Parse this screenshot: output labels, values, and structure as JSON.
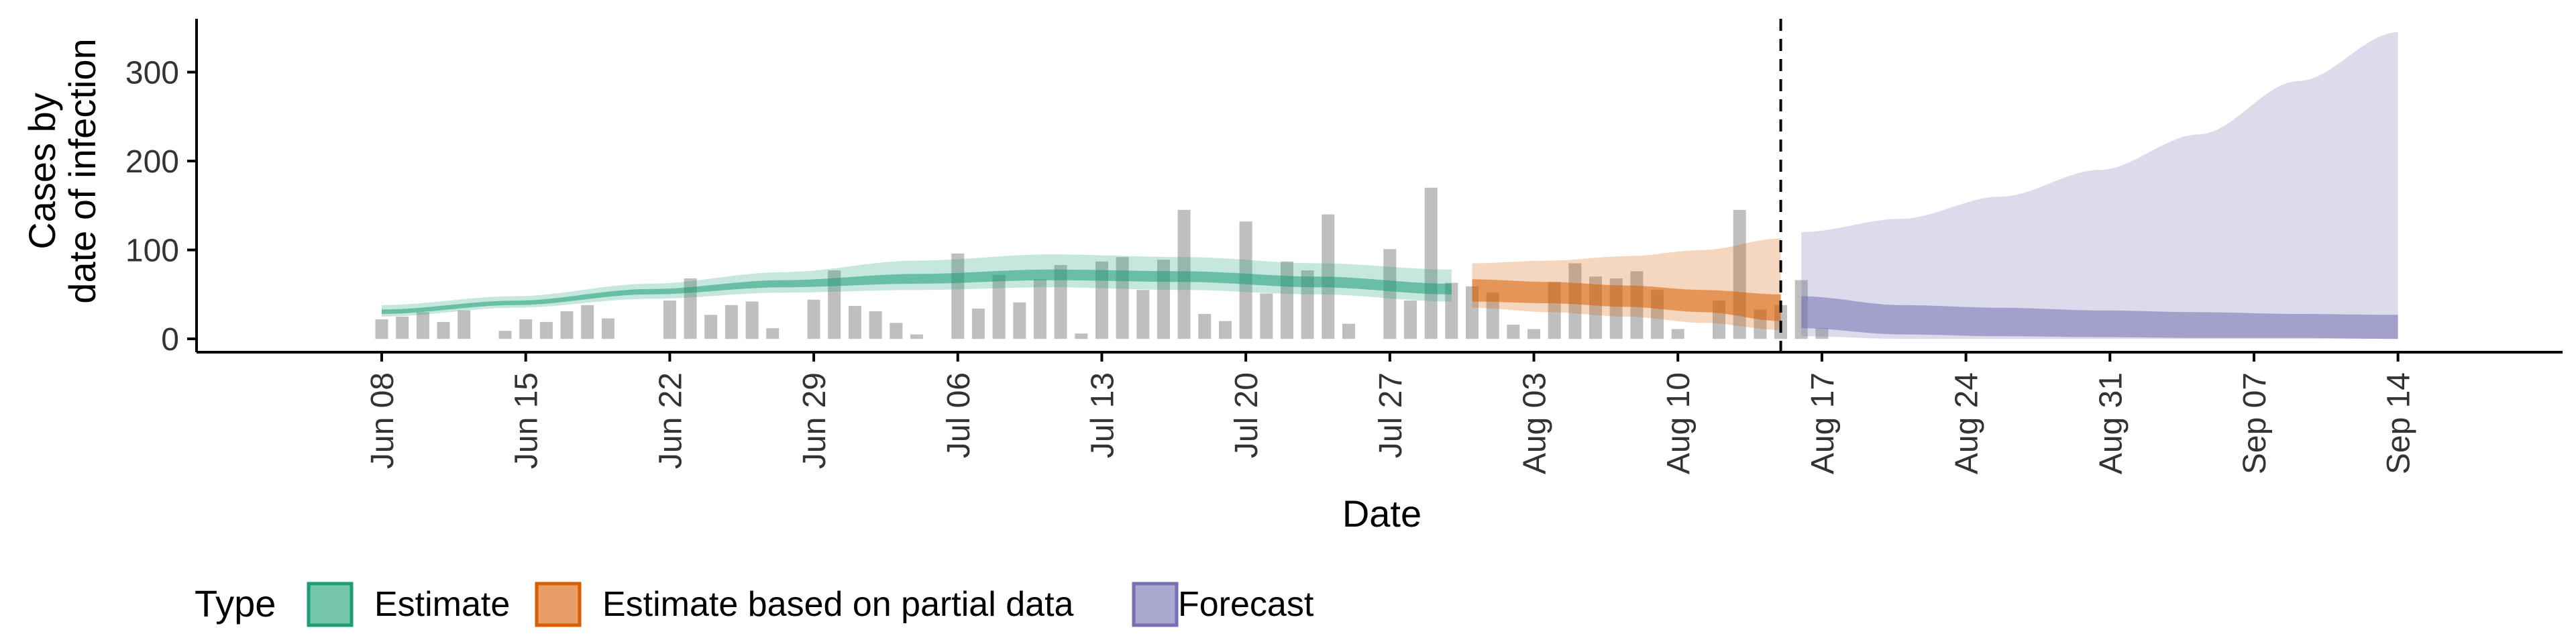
{
  "chart_data": {
    "type": "area",
    "xlabel": "Date",
    "ylabel_lines": [
      "Cases by",
      "date of infection"
    ],
    "ylim": [
      -15,
      360
    ],
    "yticks": [
      0,
      100,
      200,
      300
    ],
    "x_start": "2020-06-08",
    "x_end": "2020-09-14",
    "xlim": [
      "2020-05-30",
      "2020-09-22"
    ],
    "x_tick_labels": [
      "Jun 08",
      "Jun 15",
      "Jun 22",
      "Jun 29",
      "Jul 06",
      "Jul 13",
      "Jul 20",
      "Jul 27",
      "Aug 03",
      "Aug 10",
      "Aug 17",
      "Aug 24",
      "Aug 31",
      "Sep 07",
      "Sep 14"
    ],
    "vline_date": "2020-08-15",
    "observed_cases": [
      22,
      25,
      30,
      19,
      32,
      0,
      9,
      22,
      19,
      31,
      38,
      23,
      0,
      0,
      43,
      68,
      27,
      38,
      42,
      12,
      0,
      44,
      77,
      37,
      31,
      18,
      5,
      0,
      96,
      34,
      72,
      41,
      67,
      83,
      6,
      87,
      92,
      55,
      89,
      145,
      28,
      20,
      132,
      51,
      87,
      77,
      140,
      17,
      0,
      101,
      43,
      170,
      63,
      59,
      52,
      16,
      11,
      64,
      85,
      70,
      68,
      76,
      55,
      11,
      0,
      43,
      145,
      33,
      38,
      66,
      12
    ],
    "legend": {
      "title": "Type",
      "position": "bottom",
      "items": [
        {
          "label": "Estimate",
          "color": "#1b9e77"
        },
        {
          "label": "Estimate based on partial data",
          "color": "#d95f02"
        },
        {
          "label": "Forecast",
          "color": "#7570b3"
        }
      ]
    },
    "series": [
      {
        "name": "Estimate",
        "color": "#1b9e77",
        "start": "2020-06-08",
        "end": "2020-07-30",
        "outer_lower": [
          25,
          35,
          45,
          52,
          55,
          58,
          55,
          50,
          42
        ],
        "outer_upper": [
          38,
          48,
          62,
          75,
          88,
          95,
          92,
          85,
          78
        ],
        "inner_lower": [
          28,
          38,
          50,
          58,
          62,
          66,
          64,
          58,
          50
        ],
        "inner_upper": [
          33,
          43,
          56,
          66,
          73,
          78,
          76,
          70,
          62
        ]
      },
      {
        "name": "Estimate based on partial data",
        "color": "#d95f02",
        "start": "2020-07-31",
        "end": "2020-08-15",
        "outer_lower": [
          35,
          30,
          25,
          18,
          10
        ],
        "outer_upper": [
          85,
          88,
          93,
          100,
          113
        ],
        "inner_lower": [
          42,
          40,
          36,
          30,
          20
        ],
        "inner_upper": [
          67,
          64,
          60,
          55,
          50
        ]
      },
      {
        "name": "Forecast",
        "color": "#7570b3",
        "start": "2020-08-16",
        "end": "2020-09-14",
        "outer_lower": [
          3,
          0,
          0,
          0,
          0,
          0,
          0
        ],
        "outer_upper": [
          120,
          135,
          160,
          190,
          230,
          290,
          345
        ],
        "inner_lower": [
          12,
          5,
          3,
          2,
          1,
          1,
          0
        ],
        "inner_upper": [
          48,
          38,
          35,
          32,
          30,
          28,
          27
        ]
      }
    ]
  }
}
